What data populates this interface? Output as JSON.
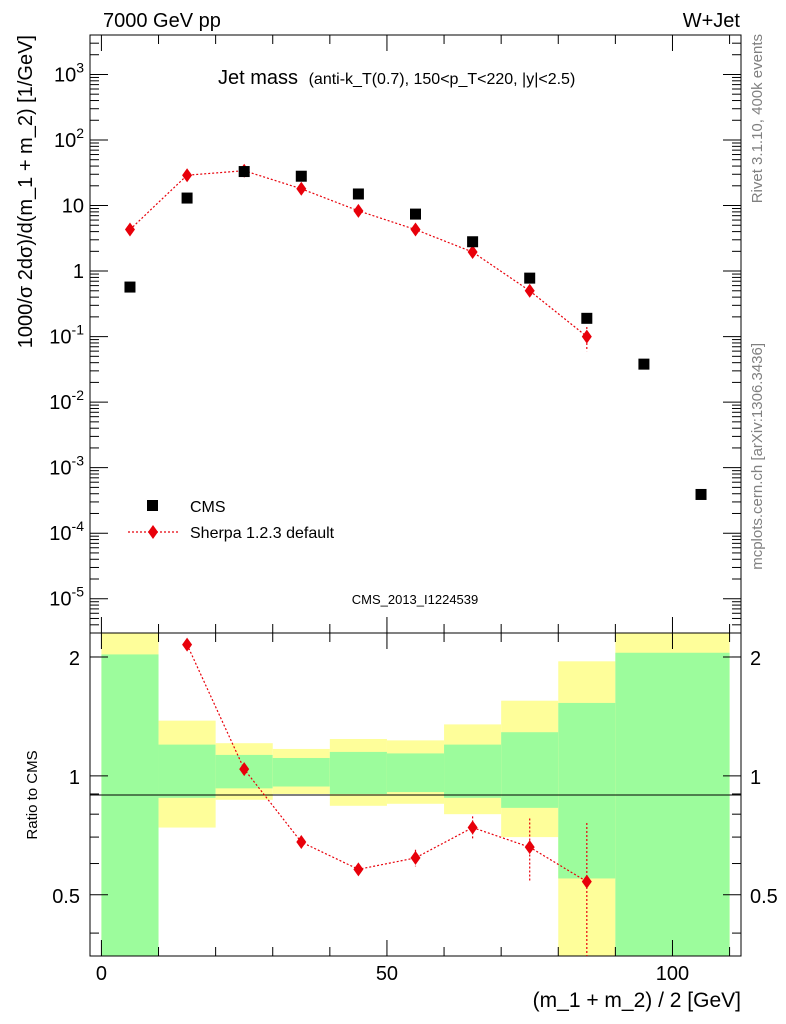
{
  "header": {
    "left": "7000 GeV pp",
    "right": "W+Jet"
  },
  "side_labels": {
    "rivet": "Rivet 3.1.10,  400k events",
    "mcplots": "mcplots.cern.ch [arXiv:1306.3436]"
  },
  "watermark": "CMS_2013_I1224539",
  "chart_data": [
    {
      "panel": "main",
      "type": "scatter",
      "title": "Jet mass",
      "subtitle": "(anti-k_T(0.7), 150<p_T<220, |y|<2.5)",
      "ylabel": "1000/σ 2dσ)/d(m_1 + m_2) [1/GeV]",
      "yscale": "log",
      "ylim": [
        3e-06,
        4000
      ],
      "xlim": [
        -2,
        112
      ],
      "ytick_labels": [
        "10^-5",
        "10^-4",
        "10^-3",
        "10^-2",
        "10^-1",
        "1",
        "10",
        "10^2",
        "10^3"
      ],
      "legend_placement": "bottom-left",
      "series": [
        {
          "name": "CMS",
          "color": "#000000",
          "marker": "square",
          "x": [
            5,
            15,
            25,
            35,
            45,
            55,
            65,
            75,
            85,
            95,
            105
          ],
          "y": [
            0.57,
            13,
            33,
            28,
            15,
            7.4,
            2.8,
            0.78,
            0.19,
            0.038,
            0.00039
          ]
        },
        {
          "name": "Sherpa 1.2.3 default",
          "color": "#e8000a",
          "marker": "diamond",
          "line": "dotted",
          "x": [
            5,
            15,
            25,
            35,
            45,
            55,
            65,
            75,
            85
          ],
          "y": [
            4.3,
            29,
            34,
            18,
            8.3,
            4.3,
            1.95,
            0.5,
            0.1
          ],
          "y_err": [
            0.2,
            0.5,
            0.8,
            0.4,
            0.2,
            0.1,
            0.05,
            0.05,
            0.04
          ]
        }
      ]
    },
    {
      "panel": "ratio",
      "type": "scatter",
      "ylabel": "Ratio to CMS",
      "xlabel": "(m_1 + m_2) / 2 [GeV]",
      "ylim": [
        0.35,
        2.3
      ],
      "xlim": [
        -2,
        112
      ],
      "xtick_labels": [
        "0",
        "50",
        "100"
      ],
      "ytick_labels": [
        "0.5",
        "1",
        "2"
      ],
      "bands": {
        "x_edges": [
          0,
          10,
          20,
          30,
          40,
          50,
          60,
          70,
          80,
          90,
          110
        ],
        "stat_low": [
          0.35,
          0.88,
          0.93,
          0.94,
          0.9,
          0.91,
          0.88,
          0.83,
          0.55,
          0.35
        ],
        "stat_high": [
          2.03,
          1.2,
          1.13,
          1.11,
          1.15,
          1.14,
          1.2,
          1.29,
          1.53,
          2.05
        ],
        "tot_low": [
          0.35,
          0.74,
          0.87,
          0.9,
          0.84,
          0.85,
          0.8,
          0.7,
          0.35,
          0.35
        ],
        "tot_high": [
          2.3,
          1.38,
          1.21,
          1.17,
          1.24,
          1.23,
          1.35,
          1.55,
          1.95,
          2.3
        ],
        "stat_color": "#9cfc9c",
        "total_color": "#fefe9a"
      },
      "series": [
        {
          "name": "Sherpa 1.2.3 default",
          "color": "#e8000a",
          "marker": "diamond",
          "line": "dotted",
          "x": [
            15,
            25,
            35,
            45,
            55,
            65,
            75,
            85
          ],
          "y": [
            2.15,
            1.04,
            0.68,
            0.58,
            0.62,
            0.74,
            0.66,
            0.54
          ],
          "y_err": [
            0.04,
            0.02,
            0.02,
            0.02,
            0.03,
            0.05,
            0.12,
            0.22
          ]
        }
      ]
    }
  ]
}
